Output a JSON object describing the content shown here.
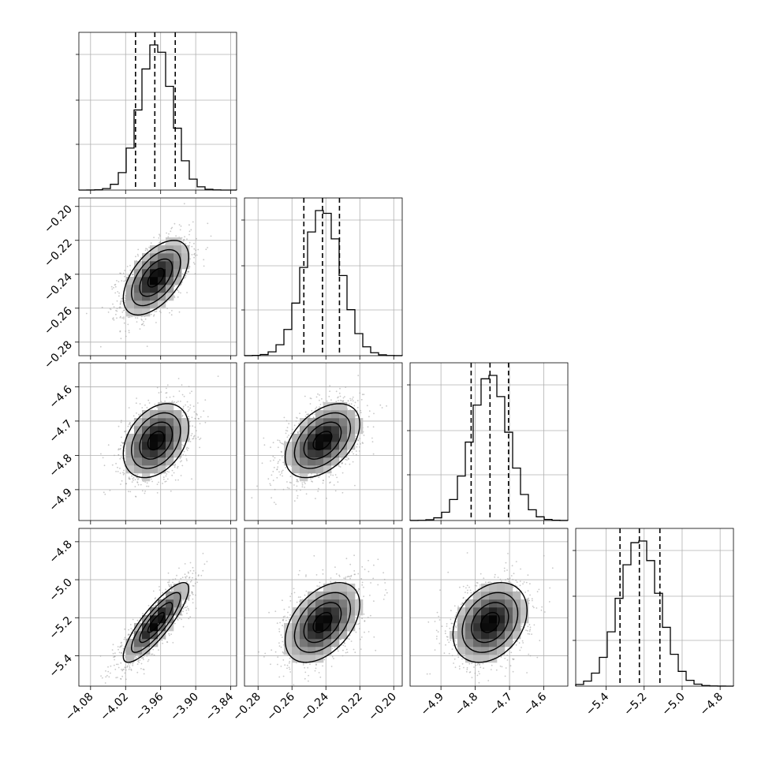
{
  "chart_data": {
    "type": "corner",
    "parameters": 4,
    "axes": [
      {
        "range": [
          -4.1,
          -3.83
        ],
        "ticks": [
          -4.08,
          -4.02,
          -3.96,
          -3.9,
          -3.84
        ],
        "tick_labels": [
          "−4.08",
          "−4.02",
          "−3.96",
          "−3.90",
          "−3.84"
        ],
        "quantiles": [
          -4.003,
          -3.97,
          -3.935
        ],
        "mean": -3.968,
        "sd": 0.028
      },
      {
        "range": [
          -0.288,
          -0.195
        ],
        "ticks": [
          -0.28,
          -0.26,
          -0.24,
          -0.22,
          -0.2
        ],
        "tick_labels": [
          "−0.28",
          "−0.26",
          "−0.24",
          "−0.22",
          "−0.20"
        ],
        "quantiles": [
          -0.253,
          -0.242,
          -0.232
        ],
        "mean": -0.242,
        "sd": 0.011
      },
      {
        "range": [
          -4.99,
          -4.53
        ],
        "ticks": [
          -4.9,
          -4.8,
          -4.7,
          -4.6
        ],
        "tick_labels": [
          "−4.9",
          "−4.8",
          "−4.7",
          "−4.6"
        ],
        "quantiles": [
          -4.812,
          -4.757,
          -4.703
        ],
        "mean": -4.757,
        "sd": 0.054
      },
      {
        "range": [
          -5.56,
          -4.73
        ],
        "ticks": [
          -5.4,
          -5.2,
          -5.0,
          -4.8
        ],
        "tick_labels": [
          "−5.4",
          "−5.2",
          "−5.0",
          "−4.8"
        ],
        "quantiles": [
          -5.327,
          -5.225,
          -5.117
        ],
        "mean": -5.225,
        "sd": 0.105
      }
    ],
    "correlations": {
      "1-0": 0.55,
      "2-0": 0.35,
      "2-1": 0.45,
      "3-0": 0.85,
      "3-1": 0.45,
      "3-2": 0.3
    },
    "histogram_bins": 20,
    "contour_levels": 4,
    "grid": true,
    "colors": {
      "line": "#000000",
      "quantile_line": "#000000",
      "grid": "#b0b0b0",
      "points": "#9a9a9a"
    }
  }
}
